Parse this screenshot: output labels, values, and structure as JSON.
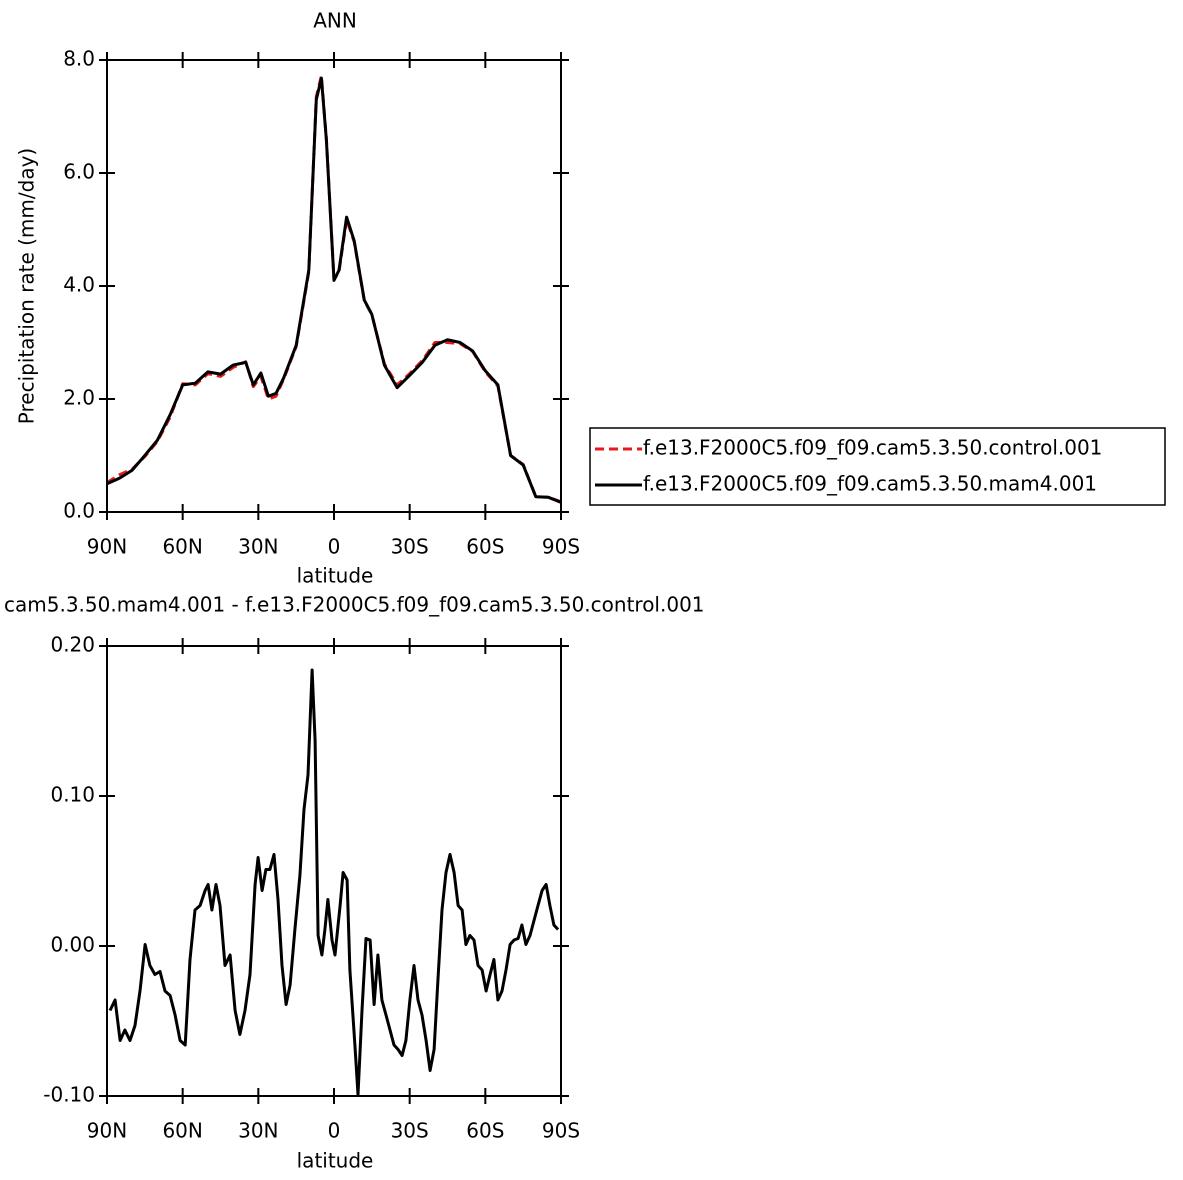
{
  "chart_data": [
    {
      "type": "line",
      "title": "ANN",
      "xlabel": "latitude",
      "ylabel": "Precipitation rate (mm/day)",
      "x": [
        90,
        85,
        80,
        75,
        70,
        65,
        60,
        55,
        50,
        45,
        40,
        35,
        32,
        29,
        26,
        23,
        20,
        15,
        10,
        7,
        5,
        3,
        0,
        -2,
        -5,
        -8,
        -12,
        -15,
        -20,
        -25,
        -30,
        -35,
        -40,
        -45,
        -50,
        -55,
        -60,
        -65,
        -70,
        -75,
        -80,
        -85,
        -90
      ],
      "series": [
        {
          "name": "f.e13.F2000C5.f09_f09.cam5.3.50.control.001",
          "color": "#e41a1c",
          "dashed": true,
          "values": [
            0.52,
            0.66,
            0.76,
            0.98,
            1.25,
            1.68,
            2.27,
            2.25,
            2.45,
            2.4,
            2.56,
            2.66,
            2.22,
            2.4,
            2.0,
            2.05,
            2.35,
            2.93,
            4.25,
            7.35,
            7.72,
            6.6,
            4.12,
            4.25,
            5.18,
            4.78,
            3.74,
            3.5,
            2.62,
            2.25,
            2.45,
            2.68,
            3.0,
            3.0,
            2.98,
            2.84,
            2.48,
            2.23,
            1.0,
            0.84,
            0.27,
            0.26,
            0.18
          ]
        },
        {
          "name": "f.e13.F2000C5.f09_f09.cam5.3.50.mam4.001",
          "color": "#000000",
          "dashed": false,
          "values": [
            0.5,
            0.6,
            0.74,
            1.0,
            1.27,
            1.72,
            2.25,
            2.28,
            2.48,
            2.44,
            2.6,
            2.65,
            2.25,
            2.46,
            2.05,
            2.1,
            2.37,
            2.95,
            4.28,
            7.3,
            7.68,
            6.58,
            4.1,
            4.28,
            5.22,
            4.8,
            3.75,
            3.5,
            2.6,
            2.2,
            2.42,
            2.65,
            2.95,
            3.05,
            3.0,
            2.85,
            2.5,
            2.25,
            1.0,
            0.83,
            0.27,
            0.26,
            0.17
          ]
        }
      ],
      "xlim": [
        90,
        -90
      ],
      "xticks": [
        {
          "value": 90,
          "label": "90N"
        },
        {
          "value": 60,
          "label": "60N"
        },
        {
          "value": 30,
          "label": "30N"
        },
        0,
        {
          "value": -30,
          "label": "30S"
        },
        {
          "value": -60,
          "label": "60S"
        },
        {
          "value": -90,
          "label": "90S"
        }
      ],
      "ylim": [
        0,
        8
      ],
      "yticks": [
        {
          "value": 0,
          "label": "0.0"
        },
        {
          "value": 2,
          "label": "2.0"
        },
        {
          "value": 4,
          "label": "4.0"
        },
        {
          "value": 6,
          "label": "6.0"
        },
        {
          "value": 8,
          "label": "8.0"
        }
      ]
    },
    {
      "type": "line",
      "title": "cam5.3.50.mam4.001 - f.e13.F2000C5.f09_f09.cam5.3.50.control.001",
      "xlabel": "latitude",
      "color": "#000000",
      "x": [
        88.8,
        86.8,
        84.8,
        82.9,
        80.9,
        78.9,
        76.9,
        74.9,
        73,
        71,
        69,
        67,
        65,
        63,
        61,
        59,
        57.1,
        55.1,
        53.1,
        51.1,
        49.9,
        48.4,
        46.8,
        45.2,
        43.2,
        41.2,
        39.2,
        37.3,
        35.3,
        33.3,
        31.3,
        30.1,
        28.5,
        27,
        25.4,
        23.8,
        22.2,
        20.6,
        19,
        17.4,
        15.5,
        13.5,
        11.9,
        10.3,
        8.7,
        7.5,
        6.3,
        4.8,
        3.6,
        2.4,
        0.8,
        -0.4,
        -2.4,
        -3.6,
        -5.2,
        -6.3,
        -8.3,
        -9.5,
        -11.1,
        -12.7,
        -14.3,
        -15.9,
        -17.4,
        -19,
        -20.6,
        -22.2,
        -23.8,
        -25.4,
        -27,
        -28.5,
        -30.1,
        -31.7,
        -33.3,
        -34.9,
        -36.5,
        -38.1,
        -39.7,
        -41.2,
        -42.8,
        -44.4,
        -46,
        -47.6,
        -49.2,
        -50.8,
        -52.3,
        -53.9,
        -55.5,
        -57.1,
        -58.7,
        -60.3,
        -61.9,
        -63.4,
        -65,
        -66.6,
        -68.2,
        -69.8,
        -71.4,
        -73,
        -74.5,
        -76.1,
        -77.7,
        -79.3,
        -80.9,
        -82.5,
        -84.1,
        -85.6,
        -87.2,
        -88.8
      ],
      "values": [
        -0.043,
        -0.036,
        -0.063,
        -0.056,
        -0.063,
        -0.053,
        -0.03,
        0.001,
        -0.013,
        -0.019,
        -0.017,
        -0.03,
        -0.033,
        -0.046,
        -0.063,
        -0.066,
        -0.009,
        0.024,
        0.027,
        0.037,
        0.041,
        0.024,
        0.041,
        0.027,
        -0.013,
        -0.006,
        -0.043,
        -0.059,
        -0.043,
        -0.019,
        0.041,
        0.059,
        0.037,
        0.051,
        0.051,
        0.061,
        0.031,
        -0.013,
        -0.039,
        -0.026,
        0.011,
        0.047,
        0.091,
        0.114,
        0.184,
        0.137,
        0.007,
        -0.006,
        0.011,
        0.031,
        0.004,
        -0.006,
        0.027,
        0.049,
        0.044,
        -0.016,
        -0.066,
        -0.099,
        -0.043,
        0.005,
        0.004,
        -0.039,
        -0.006,
        -0.036,
        -0.046,
        -0.056,
        -0.066,
        -0.069,
        -0.073,
        -0.063,
        -0.036,
        -0.013,
        -0.036,
        -0.046,
        -0.063,
        -0.083,
        -0.069,
        -0.023,
        0.024,
        0.049,
        0.061,
        0.049,
        0.027,
        0.024,
        0.001,
        0.007,
        0.004,
        -0.013,
        -0.016,
        -0.03,
        -0.019,
        -0.009,
        -0.036,
        -0.03,
        -0.016,
        0.001,
        0.004,
        0.005,
        0.014,
        0.001,
        0.007,
        0.017,
        0.027,
        0.037,
        0.041,
        0.027,
        0.014,
        0.011
      ],
      "xlim": [
        90,
        -90
      ],
      "xticks": [
        {
          "value": 90,
          "label": "90N"
        },
        {
          "value": 60,
          "label": "60N"
        },
        {
          "value": 30,
          "label": "30N"
        },
        0,
        {
          "value": -30,
          "label": "30S"
        },
        {
          "value": -60,
          "label": "60S"
        },
        {
          "value": -90,
          "label": "90S"
        }
      ],
      "ylim": [
        -0.1,
        0.2
      ],
      "yticks": [
        {
          "value": -0.1,
          "label": "-0.10"
        },
        {
          "value": 0,
          "label": "0.00"
        },
        {
          "value": 0.1,
          "label": "0.10"
        },
        {
          "value": 0.2,
          "label": "0.20"
        }
      ]
    }
  ]
}
